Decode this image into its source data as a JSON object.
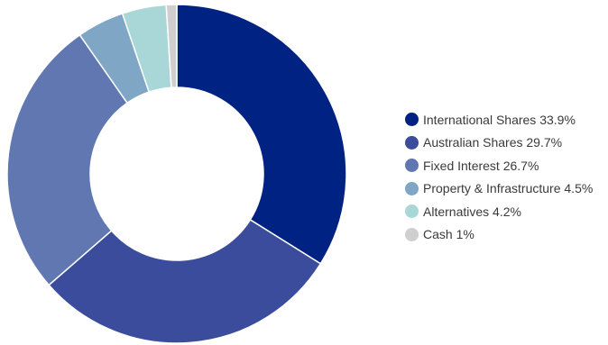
{
  "chart_data": {
    "type": "pie",
    "variant": "donut",
    "title": "",
    "categories": [
      "International Shares",
      "Australian Shares",
      "Fixed Interest",
      "Property & Infrastructure",
      "Alternatives",
      "Cash"
    ],
    "values": [
      33.9,
      29.7,
      26.7,
      4.5,
      4.2,
      1
    ],
    "colors": [
      "#002282",
      "#3b4c9c",
      "#6177b1",
      "#7fa6c5",
      "#a9d6d7",
      "#cfcfcf"
    ],
    "legend": {
      "placement": "right",
      "entries": [
        "International Shares 33.9%",
        "Australian Shares 29.7%",
        "Fixed Interest 26.7%",
        "Property & Infrastructure 4.5%",
        "Alternatives 4.2%",
        "Cash 1%"
      ]
    }
  }
}
